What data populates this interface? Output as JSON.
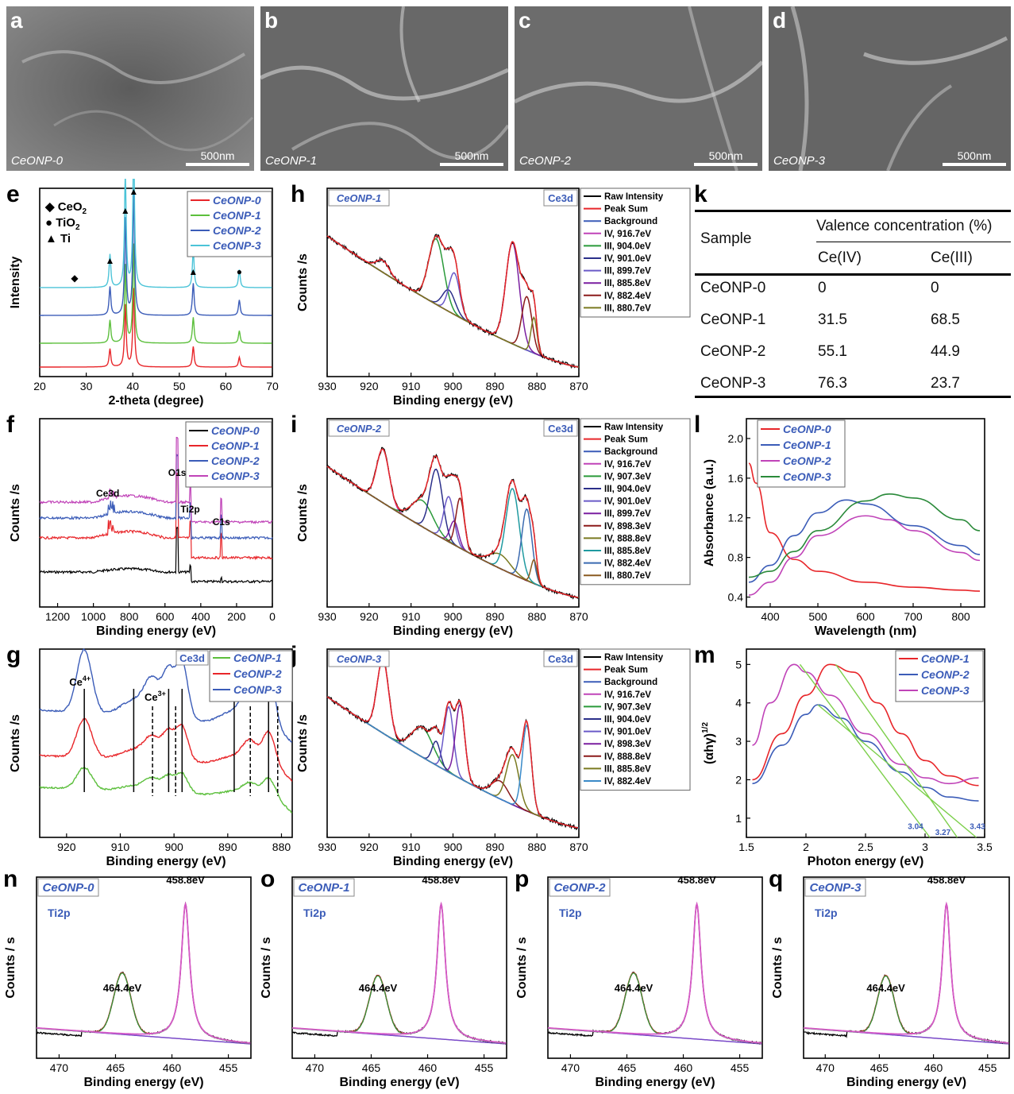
{
  "sem": [
    {
      "letter": "a",
      "label": "CeONP-0",
      "scale": "500nm",
      "shade": "#747474"
    },
    {
      "letter": "b",
      "label": "CeONP-1",
      "scale": "500nm",
      "shade": "#6a6a6a"
    },
    {
      "letter": "c",
      "label": "CeONP-2",
      "scale": "500nm",
      "shade": "#6e6e6e"
    },
    {
      "letter": "d",
      "label": "CeONP-3",
      "scale": "500nm",
      "shade": "#686868"
    }
  ],
  "table": {
    "letter": "k",
    "sample_header": "Sample",
    "group_header": "Valence concentration (%)",
    "col1": "Ce(IV)",
    "col2": "Ce(III)",
    "rows": [
      [
        "CeONP-0",
        "0",
        "0"
      ],
      [
        "CeONP-1",
        "31.5",
        "68.5"
      ],
      [
        "CeONP-2",
        "55.1",
        "44.9"
      ],
      [
        "CeONP-3",
        "76.3",
        "23.7"
      ]
    ]
  },
  "chart_data": [
    {
      "panel": "e",
      "type": "line",
      "xlabel": "2-theta (degree)",
      "ylabel": "Intensity",
      "xlim": [
        20,
        70
      ],
      "xticks": [
        20,
        30,
        40,
        50,
        60,
        70
      ],
      "markers_legend": [
        {
          "sym": "◆",
          "text": "CeO",
          "sub": "2"
        },
        {
          "sym": "●",
          "text": "TiO",
          "sub": "2"
        },
        {
          "sym": "▲",
          "text": "Ti",
          "sub": ""
        }
      ],
      "peaks": [
        {
          "x": 35.1,
          "h": 0.22
        },
        {
          "x": 38.4,
          "h": 0.75
        },
        {
          "x": 40.2,
          "h": 0.95
        },
        {
          "x": 53.0,
          "h": 0.25
        },
        {
          "x": 62.9,
          "h": 0.12
        }
      ],
      "peak_markers": [
        {
          "x": 27.5,
          "sym": "◆"
        },
        {
          "x": 35.1,
          "sym": "▲"
        },
        {
          "x": 38.4,
          "sym": "▲"
        },
        {
          "x": 40.2,
          "sym": "▲"
        },
        {
          "x": 53.0,
          "sym": "▲"
        },
        {
          "x": 62.9,
          "sym": "●"
        }
      ],
      "series": [
        {
          "name": "CeONP-0",
          "color": "#e8262a"
        },
        {
          "name": "CeONP-1",
          "color": "#5cbf3c"
        },
        {
          "name": "CeONP-2",
          "color": "#3b5cb8"
        },
        {
          "name": "CeONP-3",
          "color": "#4cc4d8"
        }
      ]
    },
    {
      "panel": "f",
      "type": "line",
      "xlabel": "Binding energy (eV)",
      "ylabel": "Counts /s",
      "xlim": [
        1300,
        0
      ],
      "xticks": [
        1200,
        1000,
        800,
        600,
        400,
        200,
        0
      ],
      "annotations": [
        {
          "x": 920,
          "text": "Ce3d"
        },
        {
          "x": 532,
          "text": "O1s"
        },
        {
          "x": 459,
          "text": "Ti2p"
        },
        {
          "x": 285,
          "text": "C1s"
        }
      ],
      "series": [
        {
          "name": "CeONP-0",
          "color": "#000000"
        },
        {
          "name": "CeONP-1",
          "color": "#e8262a"
        },
        {
          "name": "CeONP-2",
          "color": "#3b5cb8"
        },
        {
          "name": "CeONP-3",
          "color": "#c043b8"
        }
      ]
    },
    {
      "panel": "g",
      "type": "line",
      "xlabel": "Binding energy (eV)",
      "ylabel": "Counts /s",
      "tag": "Ce3d",
      "xlim": [
        925,
        878
      ],
      "xticks": [
        920,
        910,
        900,
        890,
        880
      ],
      "labels": [
        {
          "text": "Ce",
          "sup": "4+"
        },
        {
          "text": "Ce",
          "sup": "3+"
        }
      ],
      "solid_lines": [
        916.7,
        907.5,
        901.0,
        898.5,
        888.8,
        882.4
      ],
      "dashed_lines": [
        904.0,
        899.7,
        885.8,
        880.7
      ],
      "series": [
        {
          "name": "CeONP-1",
          "color": "#5cbf3c"
        },
        {
          "name": "CeONP-2",
          "color": "#e8262a"
        },
        {
          "name": "CeONP-3",
          "color": "#3b5cb8"
        }
      ]
    },
    {
      "panel": "h",
      "type": "line",
      "sample": "CeONP-1",
      "tag": "Ce3d",
      "xlabel": "Binding energy (eV)",
      "ylabel": "Counts /s",
      "xlim": [
        930,
        870
      ],
      "xticks": [
        930,
        920,
        910,
        900,
        890,
        880,
        870
      ],
      "legend": [
        "Raw Intensity",
        "Peak Sum",
        "Background",
        "IV, 916.7eV",
        "III, 904.0eV",
        "IV, 901.0eV",
        "III, 899.7eV",
        "III, 885.8eV",
        "IV, 882.4eV",
        "III, 880.7eV"
      ],
      "legend_colors": [
        "#000000",
        "#e8262a",
        "#3b5cb8",
        "#c043b8",
        "#2a9a3a",
        "#2b2f8a",
        "#6a5ac8",
        "#7a1fa0",
        "#8b1a1a",
        "#7a7a20"
      ],
      "components": [
        {
          "c": 916.7,
          "h": 0.1,
          "w": 1.5,
          "color": "#c043b8"
        },
        {
          "c": 904.0,
          "h": 0.55,
          "w": 1.8,
          "color": "#2a9a3a"
        },
        {
          "c": 901.0,
          "h": 0.18,
          "w": 1.5,
          "color": "#2b2f8a"
        },
        {
          "c": 899.7,
          "h": 0.35,
          "w": 1.3,
          "color": "#6a5ac8"
        },
        {
          "c": 885.8,
          "h": 0.85,
          "w": 1.6,
          "color": "#7a1fa0"
        },
        {
          "c": 882.4,
          "h": 0.45,
          "w": 1.2,
          "color": "#8b1a1a"
        },
        {
          "c": 880.7,
          "h": 0.3,
          "w": 0.7,
          "color": "#7a7a20"
        }
      ]
    },
    {
      "panel": "i",
      "type": "line",
      "sample": "CeONP-2",
      "tag": "Ce3d",
      "xlabel": "Binding energy (eV)",
      "ylabel": "Counts /s",
      "xlim": [
        930,
        870
      ],
      "xticks": [
        930,
        920,
        910,
        900,
        890,
        880,
        870
      ],
      "legend": [
        "Raw Intensity",
        "Peak Sum",
        "Background",
        "IV, 916.7eV",
        "IV, 907.3eV",
        "III, 904.0eV",
        "IV, 901.0eV",
        "III, 899.7eV",
        "IV, 898.3eV",
        "IV, 888.8eV",
        "III, 885.8eV",
        "IV, 882.4eV",
        "III, 880.7eV"
      ],
      "legend_colors": [
        "#000000",
        "#e8262a",
        "#3b5cb8",
        "#c043b8",
        "#2a9a3a",
        "#2b2f8a",
        "#6a5ac8",
        "#7a1fa0",
        "#8b1a1a",
        "#7a7a20",
        "#1f9aa0",
        "#3a6ab0",
        "#8a5a20"
      ],
      "components": [
        {
          "c": 916.7,
          "h": 0.45,
          "w": 1.5,
          "color": "#c043b8"
        },
        {
          "c": 907.3,
          "h": 0.22,
          "w": 2.5,
          "color": "#2a9a3a"
        },
        {
          "c": 904.0,
          "h": 0.55,
          "w": 1.5,
          "color": "#2b2f8a"
        },
        {
          "c": 901.0,
          "h": 0.38,
          "w": 1.2,
          "color": "#6a5ac8"
        },
        {
          "c": 899.7,
          "h": 0.2,
          "w": 1.0,
          "color": "#7a1fa0"
        },
        {
          "c": 898.3,
          "h": 0.42,
          "w": 1.0,
          "color": "#8b1a1a"
        },
        {
          "c": 888.8,
          "h": 0.12,
          "w": 2.5,
          "color": "#7a7a20"
        },
        {
          "c": 885.8,
          "h": 0.72,
          "w": 1.6,
          "color": "#1f9aa0"
        },
        {
          "c": 882.4,
          "h": 0.6,
          "w": 1.2,
          "color": "#3a6ab0"
        },
        {
          "c": 880.7,
          "h": 0.2,
          "w": 0.7,
          "color": "#8a5a20"
        }
      ]
    },
    {
      "panel": "j",
      "type": "line",
      "sample": "CeONP-3",
      "tag": "Ce3d",
      "xlabel": "Binding energy (eV)",
      "ylabel": "Counts /s",
      "xlim": [
        930,
        870
      ],
      "xticks": [
        930,
        920,
        910,
        900,
        890,
        880,
        870
      ],
      "legend": [
        "Raw Intensity",
        "Peak Sum",
        "Background",
        "IV, 916.7eV",
        "IV, 907.3eV",
        "III, 904.0eV",
        "IV, 901.0eV",
        "IV, 898.3eV",
        "IV, 888.8eV",
        "III, 885.8eV",
        "IV, 882.4eV"
      ],
      "legend_colors": [
        "#000000",
        "#e8262a",
        "#3b5cb8",
        "#c043b8",
        "#2a9a3a",
        "#2b2f8a",
        "#6a5ac8",
        "#7a1fa0",
        "#8b1a1a",
        "#7a7a20",
        "#3a8ac8"
      ],
      "components": [
        {
          "c": 916.7,
          "h": 0.62,
          "w": 1.4,
          "color": "#c043b8"
        },
        {
          "c": 907.3,
          "h": 0.25,
          "w": 2.5,
          "color": "#2a9a3a"
        },
        {
          "c": 904.0,
          "h": 0.2,
          "w": 1.0,
          "color": "#2b2f8a"
        },
        {
          "c": 901.0,
          "h": 0.55,
          "w": 1.1,
          "color": "#6a5ac8"
        },
        {
          "c": 898.3,
          "h": 0.62,
          "w": 1.1,
          "color": "#7a1fa0"
        },
        {
          "c": 888.8,
          "h": 0.15,
          "w": 2.0,
          "color": "#8b1a1a"
        },
        {
          "c": 885.8,
          "h": 0.42,
          "w": 1.5,
          "color": "#7a7a20"
        },
        {
          "c": 882.4,
          "h": 0.72,
          "w": 1.1,
          "color": "#3a8ac8"
        }
      ]
    },
    {
      "panel": "l",
      "type": "line",
      "xlabel": "Wavelength (nm)",
      "ylabel": "Absorbance (a.u.)",
      "xlim": [
        350,
        850
      ],
      "ylim": [
        0.3,
        2.2
      ],
      "xticks": [
        400,
        500,
        600,
        700,
        800
      ],
      "yticks": [
        0.4,
        0.8,
        1.2,
        1.6,
        2.0
      ],
      "series": [
        {
          "name": "CeONP-0",
          "color": "#e8262a",
          "points": [
            [
              355,
              1.75
            ],
            [
              370,
              1.55
            ],
            [
              400,
              1.05
            ],
            [
              450,
              0.78
            ],
            [
              500,
              0.66
            ],
            [
              600,
              0.55
            ],
            [
              700,
              0.5
            ],
            [
              800,
              0.47
            ],
            [
              840,
              0.46
            ]
          ]
        },
        {
          "name": "CeONP-1",
          "color": "#3b5cb8",
          "points": [
            [
              355,
              0.55
            ],
            [
              400,
              0.72
            ],
            [
              450,
              1.02
            ],
            [
              500,
              1.25
            ],
            [
              560,
              1.38
            ],
            [
              600,
              1.34
            ],
            [
              700,
              1.12
            ],
            [
              800,
              0.92
            ],
            [
              840,
              0.83
            ]
          ]
        },
        {
          "name": "CeONP-2",
          "color": "#c043b8",
          "points": [
            [
              355,
              0.42
            ],
            [
              400,
              0.55
            ],
            [
              450,
              0.8
            ],
            [
              500,
              1.02
            ],
            [
              600,
              1.22
            ],
            [
              650,
              1.18
            ],
            [
              700,
              1.07
            ],
            [
              800,
              0.85
            ],
            [
              840,
              0.77
            ]
          ]
        },
        {
          "name": "CeONP-3",
          "color": "#2a8a3a",
          "points": [
            [
              355,
              0.6
            ],
            [
              400,
              0.66
            ],
            [
              450,
              0.86
            ],
            [
              500,
              1.07
            ],
            [
              600,
              1.37
            ],
            [
              650,
              1.44
            ],
            [
              700,
              1.4
            ],
            [
              800,
              1.18
            ],
            [
              840,
              1.07
            ]
          ]
        }
      ]
    },
    {
      "panel": "m",
      "type": "line",
      "xlabel": "Photon energy (eV)",
      "ylabel": "(αhγ)",
      "ylabel_sup": "1/2",
      "xlim": [
        1.5,
        3.5
      ],
      "ylim": [
        0.5,
        5.4
      ],
      "xticks": [
        1.5,
        2.0,
        2.5,
        3.0,
        3.5
      ],
      "yticks": [
        1,
        2,
        3,
        4,
        5
      ],
      "tangent_labels": [
        "3.04",
        "3.27",
        "3.43"
      ],
      "series": [
        {
          "name": "CeONP-1",
          "color": "#e8262a",
          "points": [
            [
              1.55,
              2.0
            ],
            [
              1.8,
              3.2
            ],
            [
              2.0,
              4.2
            ],
            [
              2.2,
              5.0
            ],
            [
              2.4,
              4.8
            ],
            [
              2.6,
              4.0
            ],
            [
              2.8,
              3.2
            ],
            [
              3.0,
              2.5
            ],
            [
              3.2,
              2.1
            ],
            [
              3.45,
              1.85
            ]
          ]
        },
        {
          "name": "CeONP-2",
          "color": "#3b5cb8",
          "points": [
            [
              1.55,
              1.9
            ],
            [
              1.8,
              2.9
            ],
            [
              2.0,
              3.7
            ],
            [
              2.1,
              3.95
            ],
            [
              2.3,
              3.6
            ],
            [
              2.5,
              3.0
            ],
            [
              2.8,
              2.2
            ],
            [
              3.0,
              1.8
            ],
            [
              3.2,
              1.55
            ],
            [
              3.45,
              1.45
            ]
          ]
        },
        {
          "name": "CeONP-3",
          "color": "#c043b8",
          "points": [
            [
              1.55,
              2.9
            ],
            [
              1.7,
              4.0
            ],
            [
              1.9,
              5.0
            ],
            [
              2.0,
              4.8
            ],
            [
              2.2,
              4.2
            ],
            [
              2.5,
              3.2
            ],
            [
              2.8,
              2.4
            ],
            [
              3.0,
              2.05
            ],
            [
              3.2,
              1.9
            ],
            [
              3.45,
              2.05
            ]
          ]
        }
      ]
    },
    {
      "panel": "n",
      "type": "line",
      "sample": "CeONP-0",
      "tag": "Ti2p",
      "xlabel": "Binding energy (eV)",
      "ylabel": "Counts / s",
      "xlim": [
        472,
        453
      ],
      "xticks": [
        470,
        465,
        460,
        455
      ],
      "peak_labels": [
        "464.4eV",
        "458.8eV"
      ],
      "peaks": [
        {
          "c": 464.4,
          "h": 0.45
        },
        {
          "c": 458.8,
          "h": 1.0
        }
      ]
    },
    {
      "panel": "o",
      "type": "line",
      "sample": "CeONP-1",
      "tag": "Ti2p",
      "xlabel": "Binding energy (eV)",
      "ylabel": "Counts / s",
      "xlim": [
        472,
        453
      ],
      "xticks": [
        470,
        465,
        460,
        455
      ],
      "peak_labels": [
        "464.4eV",
        "458.8eV"
      ],
      "peaks": [
        {
          "c": 464.4,
          "h": 0.43
        },
        {
          "c": 458.8,
          "h": 1.0
        }
      ]
    },
    {
      "panel": "p",
      "type": "line",
      "sample": "CeONP-2",
      "tag": "Ti2p",
      "xlabel": "Binding energy (eV)",
      "ylabel": "Counts / s",
      "xlim": [
        472,
        453
      ],
      "xticks": [
        470,
        465,
        460,
        455
      ],
      "peak_labels": [
        "464.4eV",
        "458.8eV"
      ],
      "peaks": [
        {
          "c": 464.4,
          "h": 0.45
        },
        {
          "c": 458.8,
          "h": 1.0
        }
      ]
    },
    {
      "panel": "q",
      "type": "line",
      "sample": "CeONP-3",
      "tag": "Ti2p",
      "xlabel": "Binding energy (eV)",
      "ylabel": "Counts / s",
      "xlim": [
        472,
        453
      ],
      "xticks": [
        470,
        465,
        460,
        455
      ],
      "peak_labels": [
        "464.4eV",
        "458.8eV"
      ],
      "peaks": [
        {
          "c": 464.4,
          "h": 0.43
        },
        {
          "c": 458.8,
          "h": 1.0
        }
      ]
    }
  ]
}
